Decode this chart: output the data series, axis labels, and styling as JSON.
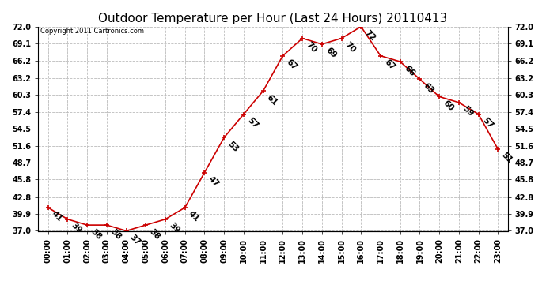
{
  "title": "Outdoor Temperature per Hour (Last 24 Hours) 20110413",
  "copyright_text": "Copyright 2011 Cartronics.com",
  "hours": [
    "00:00",
    "01:00",
    "02:00",
    "03:00",
    "04:00",
    "05:00",
    "06:00",
    "07:00",
    "08:00",
    "09:00",
    "10:00",
    "11:00",
    "12:00",
    "13:00",
    "14:00",
    "15:00",
    "16:00",
    "17:00",
    "18:00",
    "19:00",
    "20:00",
    "21:00",
    "22:00",
    "23:00"
  ],
  "temps": [
    41,
    39,
    38,
    38,
    37,
    38,
    39,
    41,
    47,
    53,
    57,
    61,
    67,
    70,
    69,
    70,
    72,
    67,
    66,
    63,
    60,
    59,
    57,
    51
  ],
  "ylim_min": 37.0,
  "ylim_max": 72.0,
  "yticks": [
    37.0,
    39.9,
    42.8,
    45.8,
    48.7,
    51.6,
    54.5,
    57.4,
    60.3,
    63.2,
    66.2,
    69.1,
    72.0
  ],
  "line_color": "#cc0000",
  "marker_color": "#cc0000",
  "bg_color": "#ffffff",
  "grid_color": "#bbbbbb",
  "title_fontsize": 11,
  "label_fontsize": 7,
  "annotation_fontsize": 7.5,
  "copyright_fontsize": 6
}
